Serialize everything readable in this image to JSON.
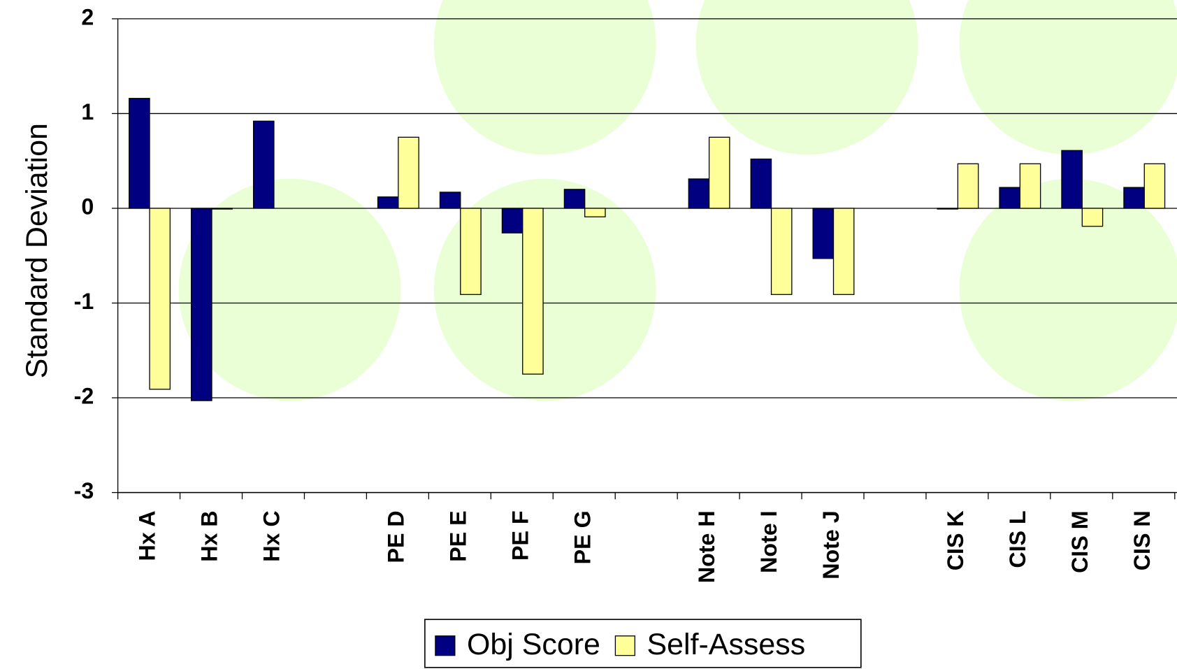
{
  "chart_data": {
    "type": "bar",
    "y_label": "Standard Deviation",
    "categories": [
      "Hx A",
      "Hx B",
      "Hx C",
      null,
      "PE D",
      "PE E",
      "PE F",
      "PE G",
      null,
      "Note H",
      "Note I",
      "Note J",
      null,
      "CIS K",
      "CIS L",
      "CIS M",
      "CIS N"
    ],
    "series": [
      {
        "name": "Obj Score",
        "color": "#000080",
        "values": [
          1.16,
          -2.03,
          0.92,
          null,
          0.12,
          0.17,
          -0.26,
          0.2,
          null,
          0.31,
          0.52,
          -0.53,
          null,
          0,
          0.22,
          0.61,
          0.22
        ]
      },
      {
        "name": "Self-Assess",
        "color": "#ffff99",
        "values": [
          -1.91,
          0,
          null,
          null,
          0.75,
          -0.91,
          -1.75,
          -0.09,
          null,
          0.75,
          -0.91,
          -0.91,
          null,
          0.47,
          0.47,
          -0.19,
          0.47
        ]
      }
    ],
    "ylim": [
      -3,
      2
    ],
    "yticks": [
      -3,
      -2,
      -1,
      0,
      1,
      2
    ],
    "grid": true
  }
}
